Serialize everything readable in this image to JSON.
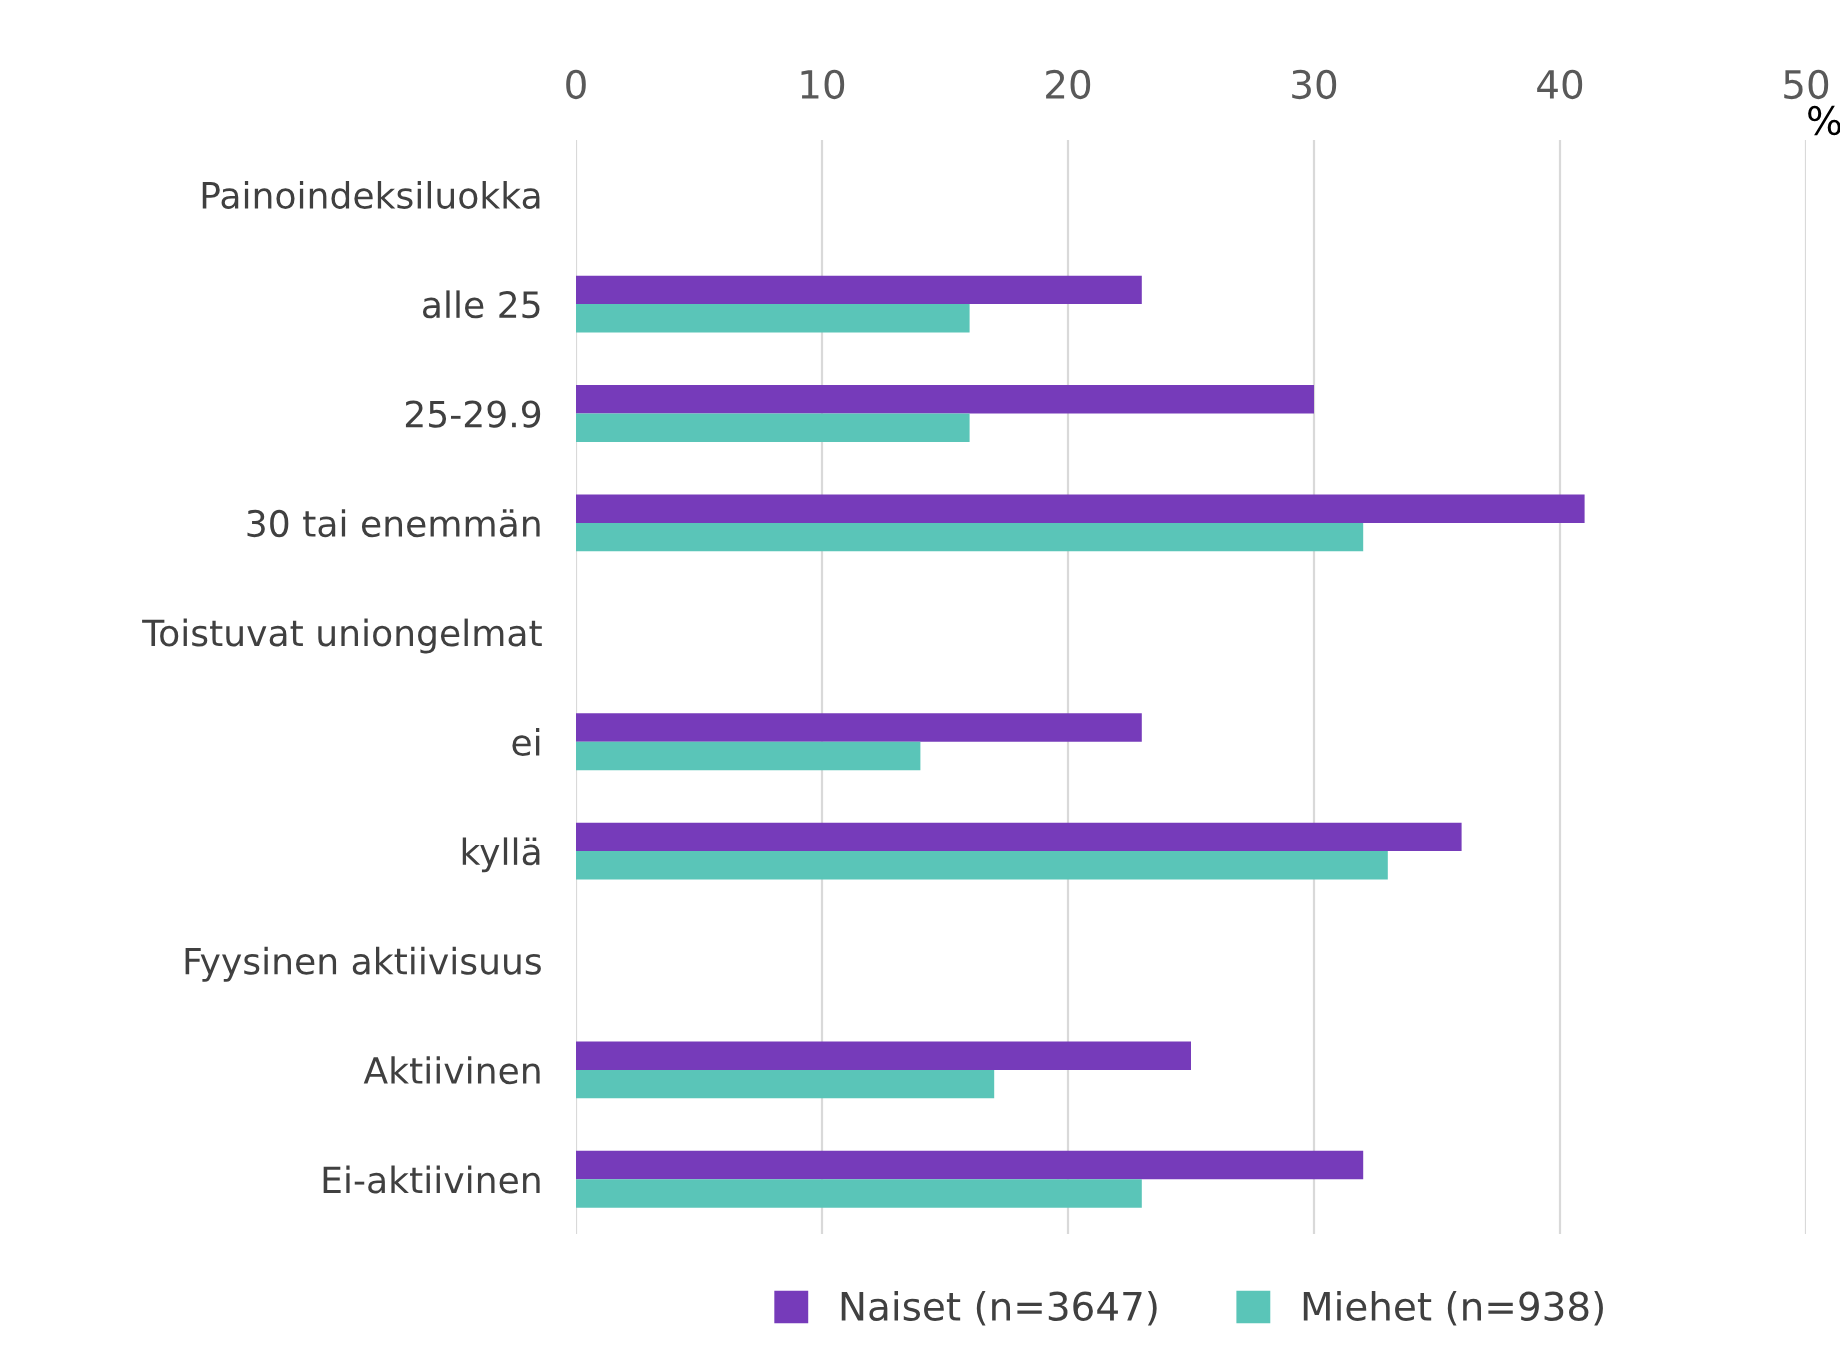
{
  "chart_data": {
    "type": "bar",
    "orientation": "horizontal",
    "xlabel": "%",
    "categories": [
      "Painoindeksiluokka",
      "alle 25",
      "25-29.9",
      "30 tai enemmän",
      "Toistuvat uniongelmat",
      "ei",
      "kyllä",
      "Fyysinen aktiivisuus",
      "Aktiivinen",
      "Ei-aktiivinen"
    ],
    "series": [
      {
        "name": "Naiset (n=3647)",
        "color": "#763bba",
        "values": [
          null,
          23,
          30,
          41,
          null,
          23,
          36,
          null,
          25,
          32
        ]
      },
      {
        "name": "Miehet (n=938)",
        "color": "#5ac5b8",
        "values": [
          null,
          16,
          16,
          32,
          null,
          14,
          33,
          null,
          17,
          23
        ]
      }
    ],
    "xlim": [
      0,
      50
    ],
    "xticks": [
      0,
      10,
      20,
      30,
      40,
      50
    ],
    "grid": "x",
    "legend": "bottom"
  }
}
